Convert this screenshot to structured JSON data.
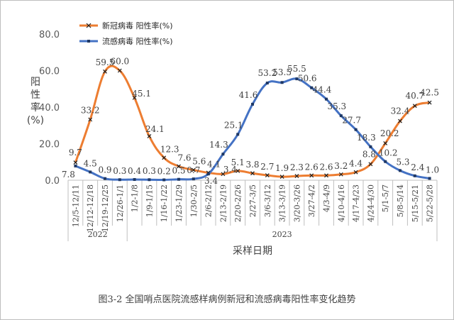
{
  "chart_data": {
    "type": "line",
    "caption": "图3-2 全国哨点医院流感样病例新冠和流感病毒阳性率变化趋势",
    "xlabel": "采样日期",
    "ylabel": "阳性率(%)",
    "ylim": [
      0,
      80
    ],
    "yticks": [
      "0.0",
      "20.0",
      "40.0",
      "60.0",
      "80.0"
    ],
    "categories": [
      "12/5-12/11",
      "12/12-12/18",
      "12/19-12/25",
      "12/26-1/1",
      "1/2-1/8",
      "1/9-1/15",
      "1/16-1/22",
      "1/23-1/29",
      "1/30-2/5",
      "2/6-2/12",
      "2/13-2/19",
      "2/20-2/26",
      "2/27-3/5",
      "3/6-3/12",
      "3/13-3/19",
      "3/20-3/26",
      "3/27-4/2",
      "4/3-4/9",
      "4/10-4/16",
      "4/17-4/23",
      "4/24-4/30",
      "5/1-5/7",
      "5/8-5/14",
      "5/15-5/21",
      "5/22-5/28"
    ],
    "year_groups": [
      {
        "label": "2022",
        "start": 0,
        "end": 3
      },
      {
        "label": "2023",
        "start": 4,
        "end": 24
      }
    ],
    "series": [
      {
        "name": "新冠病毒 阳性率(%)",
        "color": "#ED7D31",
        "marker": "x",
        "values": [
          9.7,
          33.2,
          59.5,
          60.0,
          45.1,
          24.1,
          12.3,
          7.6,
          5.6,
          4.1,
          3.4,
          5.1,
          3.8,
          2.7,
          1.9,
          2.3,
          2.6,
          2.6,
          3.2,
          4.4,
          8.8,
          20.2,
          32.4,
          40.7,
          42.5
        ],
        "labels": [
          "9.7",
          "33.2",
          "59.5",
          "60.0",
          "45.1",
          "24.1",
          "12.3",
          "7.6",
          "5.6",
          "4.1",
          "3.4",
          "5.1",
          "3.8",
          "2.7",
          "1.9",
          "2.3",
          "2.6",
          "2.6",
          "3.2",
          "4.4",
          "8.8",
          "20.2",
          "32.4",
          "40.7",
          "42.5"
        ]
      },
      {
        "name": "流感病毒 阳性率(%)",
        "color": "#4472C4",
        "marker": "square",
        "values": [
          7.8,
          4.5,
          0.9,
          0.3,
          0.4,
          0.3,
          0.2,
          0.5,
          0.7,
          3.4,
          14.3,
          25.1,
          41.6,
          53.2,
          53.5,
          55.5,
          50.6,
          44.4,
          35.3,
          27.7,
          18.3,
          10.2,
          5.3,
          2.4,
          1.0
        ],
        "labels": [
          "7.8",
          "4.5",
          "0.9",
          "0.3",
          "0.4",
          "0.3",
          "0.2",
          "0.5",
          "0.7",
          "3.4",
          "14.3",
          "25.1",
          "41.6",
          "53.2",
          "53.5",
          "55.5",
          "50.6",
          "44.4",
          "35.3",
          "27.7",
          "18.3",
          "10.2",
          "5.3",
          "2.4",
          "1.0"
        ]
      }
    ]
  }
}
